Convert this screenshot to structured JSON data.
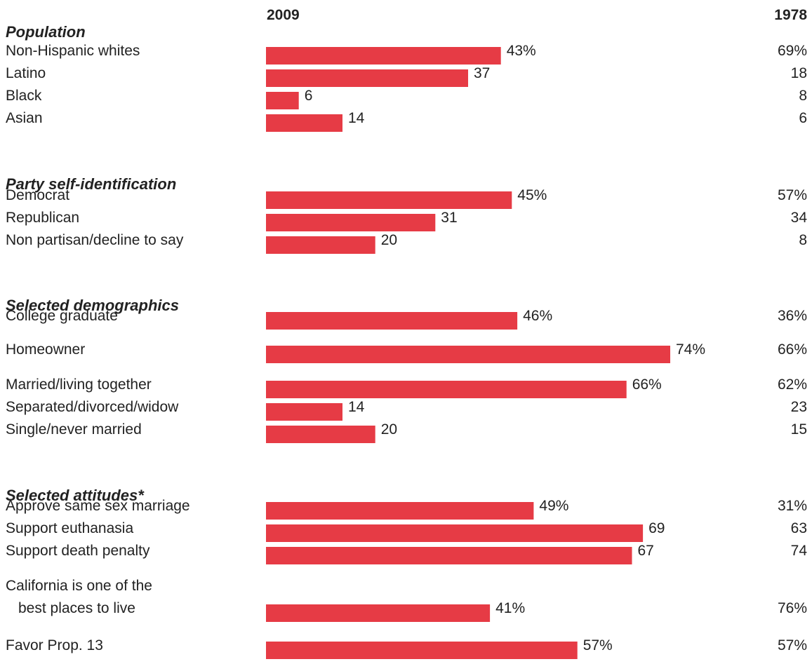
{
  "chart_data": {
    "type": "bar",
    "column_headers": {
      "left": "2009",
      "right": "1978"
    },
    "bar_color": "#e63b45",
    "xlim": [
      0,
      100
    ],
    "sections": [
      {
        "title": "Population",
        "rows": [
          {
            "label": "Non-Hispanic whites",
            "v2009": 43,
            "label2009": "43%",
            "v1978": "69%"
          },
          {
            "label": "Latino",
            "v2009": 37,
            "label2009": "37",
            "v1978": "18"
          },
          {
            "label": "Black",
            "v2009": 6,
            "label2009": "6",
            "v1978": "8"
          },
          {
            "label": "Asian",
            "v2009": 14,
            "label2009": "14",
            "v1978": "6"
          }
        ]
      },
      {
        "title": "Party self-identification",
        "rows": [
          {
            "label": "Democrat",
            "v2009": 45,
            "label2009": "45%",
            "v1978": "57%"
          },
          {
            "label": "Republican",
            "v2009": 31,
            "label2009": "31",
            "v1978": "34"
          },
          {
            "label": "Non partisan/decline to say",
            "v2009": 20,
            "label2009": "20",
            "v1978": "8"
          }
        ]
      },
      {
        "title": "Selected demographics",
        "rows": [
          {
            "label": "College graduate",
            "v2009": 46,
            "label2009": "46%",
            "v1978": "36%"
          },
          {
            "label": "Homeowner",
            "v2009": 74,
            "label2009": "74%",
            "v1978": "66%"
          },
          {
            "label": "Married/living together",
            "v2009": 66,
            "label2009": "66%",
            "v1978": "62%"
          },
          {
            "label": "Separated/divorced/widow",
            "v2009": 14,
            "label2009": "14",
            "v1978": "23"
          },
          {
            "label": "Single/never married",
            "v2009": 20,
            "label2009": "20",
            "v1978": "15"
          }
        ]
      },
      {
        "title": "Selected attitudes*",
        "rows": [
          {
            "label": "Approve same sex marriage",
            "v2009": 49,
            "label2009": "49%",
            "v1978": "31%"
          },
          {
            "label": "Support euthanasia",
            "v2009": 69,
            "label2009": "69",
            "v1978": "63"
          },
          {
            "label": "Support death penalty",
            "v2009": 67,
            "label2009": "67",
            "v1978": "74"
          },
          {
            "label": "California is one of the",
            "label_line2": "best places to live",
            "v2009": 41,
            "label2009": "41%",
            "v1978": "76%"
          },
          {
            "label": "Favor Prop. 13",
            "v2009": 57,
            "label2009": "57%",
            "v1978": "57%"
          }
        ]
      }
    ]
  }
}
